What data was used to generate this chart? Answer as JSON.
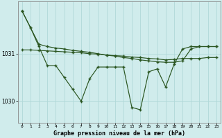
{
  "title": "Graphe pression niveau de la mer (hPa)",
  "bg_color": "#d0ecec",
  "grid_color": "#b0d8d8",
  "line_color": "#2a5520",
  "ylim_min": 1029.55,
  "ylim_max": 1032.1,
  "yticks": [
    1030,
    1031
  ],
  "xticks": [
    0,
    1,
    2,
    3,
    4,
    5,
    6,
    7,
    8,
    9,
    10,
    11,
    12,
    13,
    14,
    15,
    16,
    17,
    18,
    19,
    20,
    21,
    22,
    23
  ],
  "main_y": [
    1031.9,
    1031.55,
    1031.15,
    1030.75,
    1030.75,
    1030.5,
    1030.25,
    1030.0,
    1030.47,
    1030.72,
    1030.72,
    1030.72,
    1030.72,
    1029.87,
    1029.82,
    1030.62,
    1030.68,
    1030.3,
    1030.78,
    1031.1,
    1031.15,
    1031.15,
    1031.15,
    1031.15
  ],
  "upper_y": [
    1031.9,
    1031.55,
    1031.2,
    1031.15,
    1031.12,
    1031.1,
    1031.07,
    1031.05,
    1031.03,
    1031.0,
    1030.97,
    1030.95,
    1030.92,
    1030.9,
    1030.87,
    1030.85,
    1030.83,
    1030.82,
    1030.82,
    1030.85,
    1031.1,
    1031.15,
    1031.15,
    1031.15
  ],
  "lower_y": [
    1031.08,
    1031.08,
    1031.07,
    1031.06,
    1031.05,
    1031.04,
    1031.03,
    1031.02,
    1031.0,
    1030.99,
    1030.97,
    1030.96,
    1030.95,
    1030.93,
    1030.92,
    1030.9,
    1030.89,
    1030.87,
    1030.88,
    1030.9,
    1030.9,
    1030.9,
    1030.92,
    1030.92
  ]
}
